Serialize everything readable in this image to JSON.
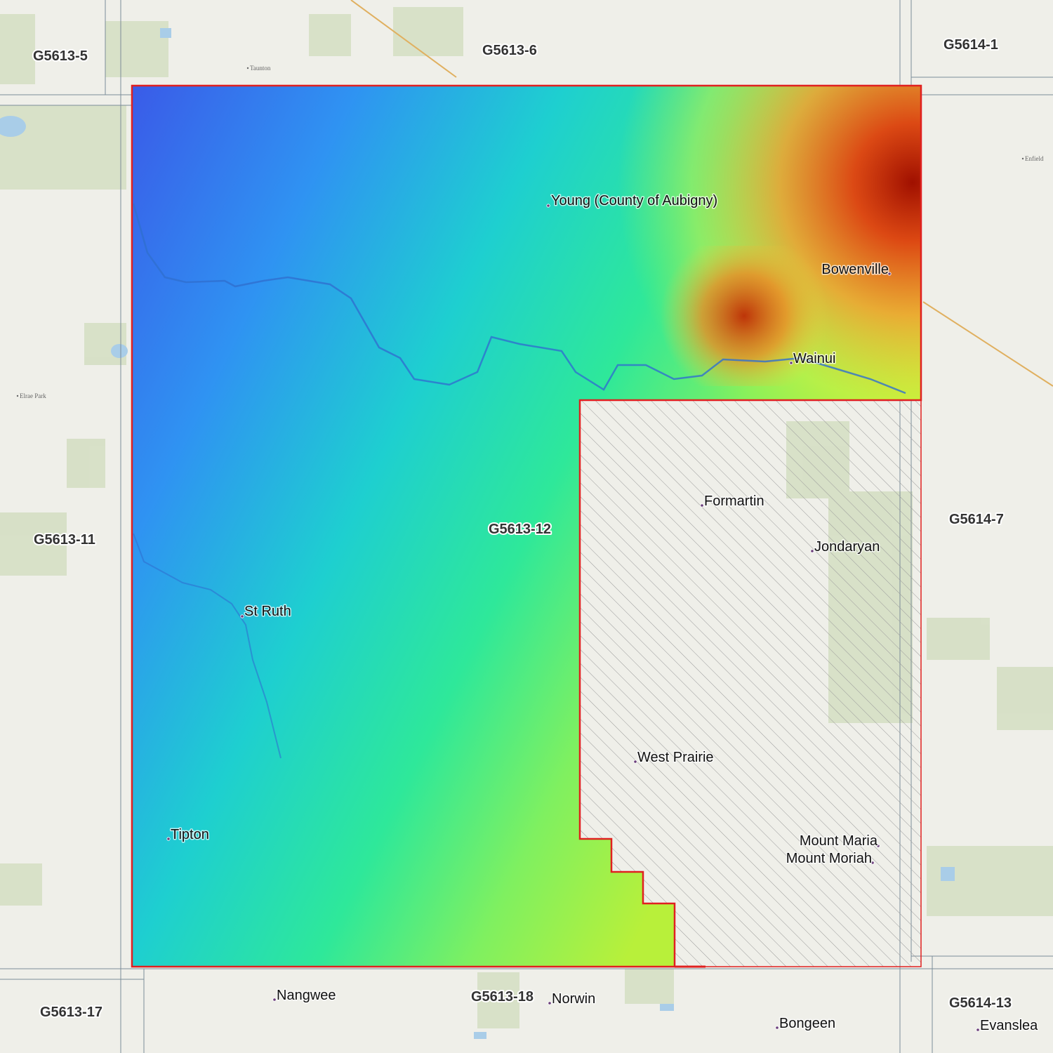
{
  "map": {
    "tiles": [
      "G5613-5",
      "G5613-6",
      "G5614-1",
      "G5613-11",
      "G5613-12",
      "G5614-7",
      "G5613-17",
      "G5613-18",
      "G5614-13"
    ],
    "places": [
      "Young (County of Aubigny)",
      "Bowenville",
      "Wainui",
      "Formartin",
      "Jondaryan",
      "St Ruth",
      "West Prairie",
      "Tipton",
      "Mount Maria",
      "Mount Moriah",
      "Nangwee",
      "Norwin",
      "Bongeen",
      "Evanslea"
    ],
    "minor_places": [
      "Taunton",
      "Elrae Park",
      "Enfield"
    ]
  }
}
